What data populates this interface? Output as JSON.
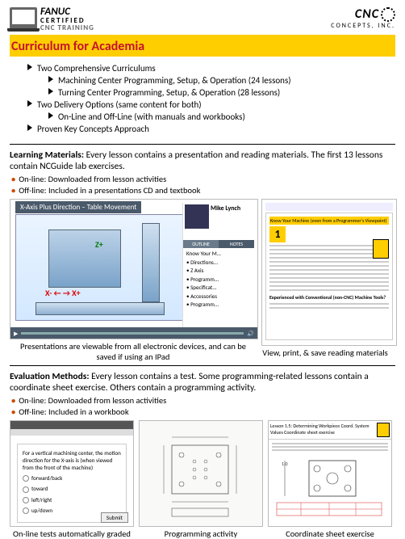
{
  "header": {
    "brand_top": "FANUC",
    "brand_mid": "CERTIFIED",
    "brand_bot": "CNC TRAINING",
    "company_logo": "CNC",
    "company_name": "CONCEPTS, INC."
  },
  "title": "Curriculum for Academia",
  "overview": [
    {
      "lvl": 1,
      "text": "Two Comprehensive Curriculums"
    },
    {
      "lvl": 2,
      "text": "Machining Center Programming, Setup, & Operation (24 lessons)"
    },
    {
      "lvl": 2,
      "text": "Turning Center Programming, Setup, & Operation (28 lessons)"
    },
    {
      "lvl": 1,
      "text": "Two Delivery Options (same content for both)"
    },
    {
      "lvl": 2,
      "text": "On-Line and Off-Line (with manuals and workbooks)"
    },
    {
      "lvl": 1,
      "text": "Proven Key Concepts Approach"
    }
  ],
  "learn": {
    "label": "Learning Materials:",
    "text": " Every lesson contains a presentation and reading materials. The first 13 lessons contain NCGuide lab exercises.",
    "sub1": "On-line: Downloaded from lesson activities",
    "sub2": "Off-line: Included in a presentations CD and textbook",
    "diag_title": "X-Axis Plus Direction – Table Movement",
    "presenter": "Mike Lynch",
    "tab1": "OUTLINE",
    "tab2": "NOTES",
    "outline": [
      "Know Your M...",
      "• Directions...",
      "• Z Axis",
      "• Programm...",
      "• Specificat...",
      "• Accessories",
      "• Programm..."
    ],
    "cap_left": "Presentations are viewable from all electronic devices, and can be saved if using an IPad",
    "reader_title": "Know Your Machine (even from a Programmer's Viewpoint)",
    "reader_num": "1",
    "reader_sect": "Experienced with Conventional (non-CNC) Machine Tools?",
    "cap_right": "View, print, & save reading materials"
  },
  "eval": {
    "label": "Evaluation Methods:",
    "text": " Every lesson contains a test. Some programming-related lessons contain a coordinate sheet exercise. Others contain a programming activity.",
    "sub1": "On-line: Downloaded from lesson activities",
    "sub2": "Off-line: Included in a workbook",
    "quiz_q": "For a vertical machining center, the motion direction for the X-axis is (when viewed from the front of the machine)",
    "quiz_opts": [
      "forward/back",
      "toward",
      "left/right",
      "up/down"
    ],
    "quiz_submit": "Submit",
    "cap1": "On-line tests automatically graded",
    "cap2": "Programming activity",
    "cap3": "Coordinate sheet exercise",
    "sheet_title": "Lesson 1.5: Determining Workpiece Coord. System Values Coordinate sheet exercise"
  },
  "colors": {
    "title_bg": "#ffce00",
    "title_fg": "#c41230",
    "bullet_dot": "#c94c00"
  }
}
